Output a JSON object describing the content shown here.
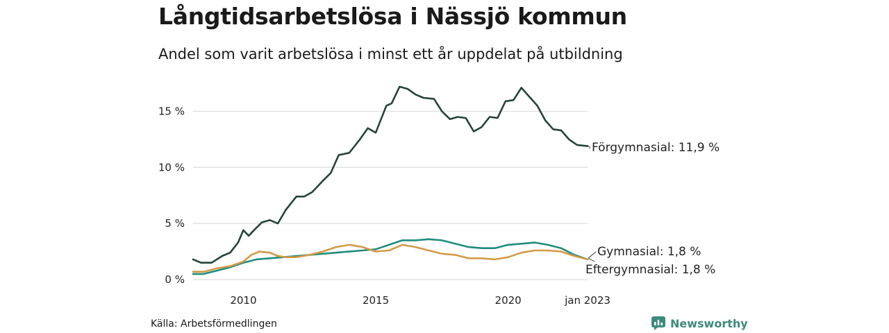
{
  "title": "Långtidsarbetslösa i Nässjö kommun",
  "subtitle": "Andel som varit arbetslösa i minst ett år uppdelat på utbildning",
  "source": "Källa: Arbetsförmedlingen",
  "brand": {
    "name": "Newsworthy",
    "icon": "newsworthy-logo-icon",
    "color": "#3d8b7d"
  },
  "chart_data": {
    "type": "line",
    "xlim": [
      2008.1,
      2023.0
    ],
    "ylim": [
      0,
      17.5
    ],
    "y_ticks": [
      0,
      5,
      10,
      15
    ],
    "y_tick_labels": [
      "0 %",
      "5 %",
      "10 %",
      "15 %"
    ],
    "x_ticks": [
      2010,
      2015,
      2020,
      2023
    ],
    "x_tick_labels": [
      "2010",
      "2015",
      "2020",
      "jan 2023"
    ],
    "grid": "horizontal",
    "legend": "direct labels at line ends",
    "series": [
      {
        "name": "Förgymnasial",
        "end_label": "Förgymnasial: 11,9 %",
        "color": "#24443a",
        "x": [
          2008.1,
          2008.4,
          2008.8,
          2009.2,
          2009.5,
          2009.8,
          2010.0,
          2010.2,
          2010.4,
          2010.7,
          2011.0,
          2011.3,
          2011.6,
          2012.0,
          2012.3,
          2012.6,
          2013.0,
          2013.3,
          2013.6,
          2014.0,
          2014.4,
          2014.7,
          2015.0,
          2015.4,
          2015.6,
          2015.9,
          2016.2,
          2016.5,
          2016.8,
          2017.2,
          2017.5,
          2017.8,
          2018.1,
          2018.4,
          2018.7,
          2019.0,
          2019.3,
          2019.6,
          2019.9,
          2020.2,
          2020.5,
          2020.8,
          2021.1,
          2021.4,
          2021.7,
          2022.0,
          2022.3,
          2022.6,
          2023.0
        ],
        "y": [
          1.8,
          1.5,
          1.5,
          2.1,
          2.4,
          3.3,
          4.4,
          3.9,
          4.4,
          5.1,
          5.3,
          5.0,
          6.2,
          7.4,
          7.4,
          7.8,
          8.8,
          9.5,
          11.1,
          11.3,
          12.5,
          13.5,
          13.1,
          15.5,
          15.7,
          17.2,
          17.0,
          16.5,
          16.2,
          16.1,
          15.0,
          14.3,
          14.5,
          14.4,
          13.2,
          13.6,
          14.5,
          14.4,
          15.9,
          16.0,
          17.1,
          16.3,
          15.5,
          14.2,
          13.4,
          13.3,
          12.5,
          12.0,
          11.9
        ]
      },
      {
        "name": "Gymnasial",
        "end_label": "Gymnasial:  1,8 %",
        "color": "#1e8c7e",
        "x": [
          2008.1,
          2008.5,
          2009.0,
          2009.5,
          2010.0,
          2010.5,
          2011.0,
          2011.5,
          2012.0,
          2012.5,
          2013.0,
          2013.5,
          2014.0,
          2014.5,
          2015.0,
          2015.5,
          2016.0,
          2016.5,
          2017.0,
          2017.5,
          2018.0,
          2018.5,
          2019.0,
          2019.5,
          2020.0,
          2020.5,
          2021.0,
          2021.5,
          2022.0,
          2022.5,
          2023.0
        ],
        "y": [
          0.5,
          0.5,
          0.8,
          1.1,
          1.5,
          1.8,
          1.9,
          2.0,
          2.1,
          2.2,
          2.3,
          2.4,
          2.5,
          2.6,
          2.7,
          3.1,
          3.5,
          3.5,
          3.6,
          3.5,
          3.2,
          2.9,
          2.8,
          2.8,
          3.1,
          3.2,
          3.3,
          3.1,
          2.8,
          2.2,
          1.8
        ]
      },
      {
        "name": "Eftergymnasial",
        "end_label": "Eftergymnasial:  1,8 %",
        "color": "#d39a47",
        "x": [
          2008.1,
          2008.5,
          2009.0,
          2009.5,
          2010.0,
          2010.3,
          2010.6,
          2011.0,
          2011.3,
          2011.6,
          2012.0,
          2012.5,
          2013.0,
          2013.5,
          2014.0,
          2014.5,
          2015.0,
          2015.5,
          2016.0,
          2016.5,
          2017.0,
          2017.5,
          2018.0,
          2018.5,
          2019.0,
          2019.5,
          2020.0,
          2020.5,
          2021.0,
          2021.5,
          2022.0,
          2022.5,
          2023.0
        ],
        "y": [
          0.7,
          0.7,
          1.0,
          1.2,
          1.6,
          2.2,
          2.5,
          2.4,
          2.1,
          2.0,
          2.0,
          2.2,
          2.5,
          2.9,
          3.1,
          2.9,
          2.5,
          2.6,
          3.1,
          2.9,
          2.6,
          2.3,
          2.2,
          1.9,
          1.9,
          1.8,
          2.0,
          2.4,
          2.6,
          2.6,
          2.5,
          2.1,
          1.8
        ]
      }
    ]
  }
}
